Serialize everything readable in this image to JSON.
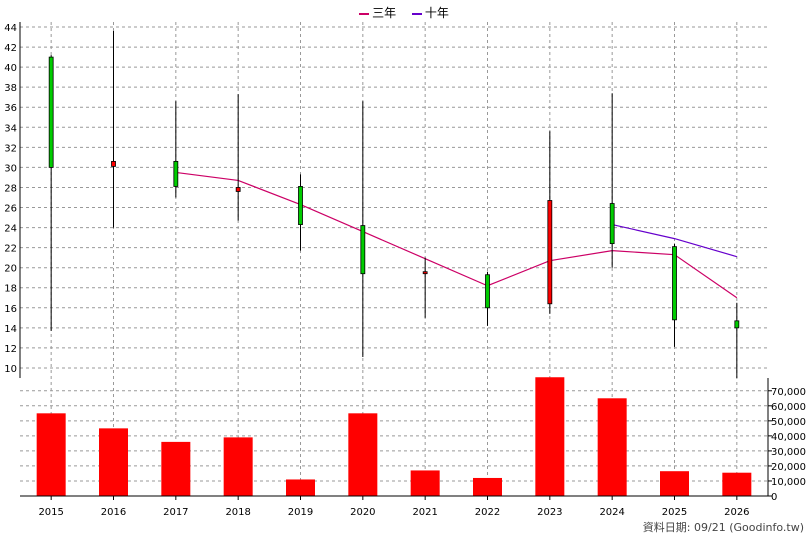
{
  "legend": {
    "series": [
      {
        "name": "三年",
        "color": "#cc0066"
      },
      {
        "name": "十年",
        "color": "#6600cc"
      }
    ]
  },
  "footer": {
    "text": "資料日期: 09/21  (Goodinfo.tw)"
  },
  "colors": {
    "up": "#ff0000",
    "down": "#00cc00",
    "volume": "#ff0000",
    "grid": "#999999",
    "wick": "#000000"
  },
  "chart_data": [
    {
      "type": "candlestick",
      "title": "",
      "categories": [
        "2015",
        "2016",
        "2017",
        "2018",
        "2019",
        "2020",
        "2021",
        "2022",
        "2023",
        "2024",
        "2025",
        "2026"
      ],
      "ylim": [
        9,
        44.5
      ],
      "yticks": [
        10,
        12,
        14,
        16,
        18,
        20,
        22,
        24,
        26,
        28,
        30,
        32,
        34,
        36,
        38,
        40,
        42,
        44
      ],
      "grid": true,
      "candles": [
        {
          "x": "2015",
          "open": 41.0,
          "high": 41.2,
          "low": 13.7,
          "close": 30.0
        },
        {
          "x": "2016",
          "open": 30.1,
          "high": 43.6,
          "low": 24.0,
          "close": 30.6
        },
        {
          "x": "2017",
          "open": 30.6,
          "high": 36.6,
          "low": 27.0,
          "close": 28.1
        },
        {
          "x": "2018",
          "open": 27.6,
          "high": 37.3,
          "low": 24.7,
          "close": 28.0
        },
        {
          "x": "2019",
          "open": 28.1,
          "high": 29.3,
          "low": 21.7,
          "close": 24.3
        },
        {
          "x": "2020",
          "open": 24.2,
          "high": 36.6,
          "low": 11.1,
          "close": 19.4
        },
        {
          "x": "2021",
          "open": 19.4,
          "high": 21.0,
          "low": 15.0,
          "close": 19.6
        },
        {
          "x": "2022",
          "open": 19.3,
          "high": 19.6,
          "low": 14.2,
          "close": 16.0
        },
        {
          "x": "2023",
          "open": 16.4,
          "high": 33.6,
          "low": 15.4,
          "close": 26.7
        },
        {
          "x": "2024",
          "open": 26.4,
          "high": 37.4,
          "low": 20.0,
          "close": 22.4
        },
        {
          "x": "2025",
          "open": 22.1,
          "high": 22.4,
          "low": 12.1,
          "close": 14.8
        },
        {
          "x": "2026",
          "open": 14.7,
          "high": 16.5,
          "low": 9.0,
          "close": 14.0
        }
      ],
      "series": [
        {
          "name": "三年",
          "color": "#cc0066",
          "x": [
            "2017",
            "2018",
            "2019",
            "2020",
            "2021",
            "2022",
            "2023",
            "2024",
            "2025",
            "2026"
          ],
          "values": [
            29.5,
            28.7,
            26.3,
            23.6,
            20.9,
            18.2,
            20.7,
            21.7,
            21.3,
            17.0
          ]
        },
        {
          "name": "十年",
          "color": "#6600cc",
          "x": [
            "2024",
            "2025",
            "2026"
          ],
          "values": [
            24.3,
            22.9,
            21.1
          ]
        }
      ]
    },
    {
      "type": "bar",
      "title": "",
      "categories": [
        "2015",
        "2016",
        "2017",
        "2018",
        "2019",
        "2020",
        "2021",
        "2022",
        "2023",
        "2024",
        "2025",
        "2026"
      ],
      "values": [
        55000,
        45000,
        36000,
        39000,
        11000,
        55000,
        17000,
        12000,
        79000,
        65000,
        16500,
        15500
      ],
      "ylim": [
        0,
        78500
      ],
      "yticks": [
        0,
        10000,
        20000,
        30000,
        40000,
        50000,
        60000,
        70000
      ],
      "ytick_labels": [
        "0",
        "10,000",
        "20,000",
        "30,000",
        "40,000",
        "50,000",
        "60,000",
        "70,000"
      ],
      "grid": true
    }
  ]
}
